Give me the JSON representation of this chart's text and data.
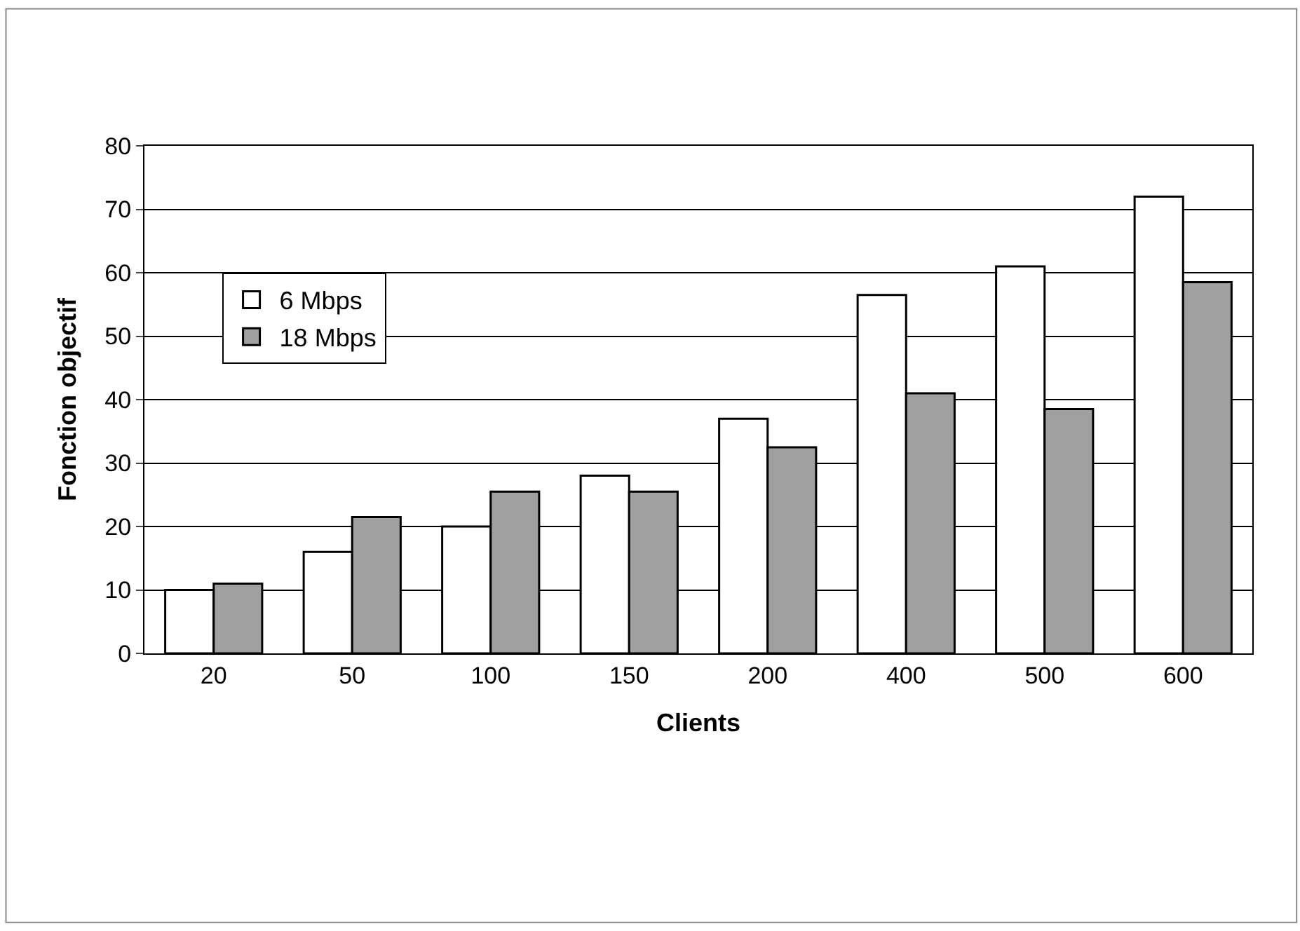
{
  "chart_data": {
    "type": "bar",
    "xlabel": "Clients",
    "ylabel": "Fonction objectif",
    "categories": [
      "20",
      "50",
      "100",
      "150",
      "200",
      "400",
      "500",
      "600"
    ],
    "series": [
      {
        "name": "6 Mbps",
        "color": "#ffffff",
        "values": [
          10,
          16,
          20,
          28,
          37,
          56.5,
          61,
          72
        ]
      },
      {
        "name": "18 Mbps",
        "color": "#a0a0a0",
        "values": [
          11,
          21.5,
          25.5,
          25.5,
          32.5,
          41,
          38.5,
          58.5
        ]
      }
    ],
    "ylim": [
      0,
      80
    ],
    "yticks": [
      0,
      10,
      20,
      30,
      40,
      50,
      60,
      70,
      80
    ],
    "grid": "y",
    "legend": "top left"
  }
}
